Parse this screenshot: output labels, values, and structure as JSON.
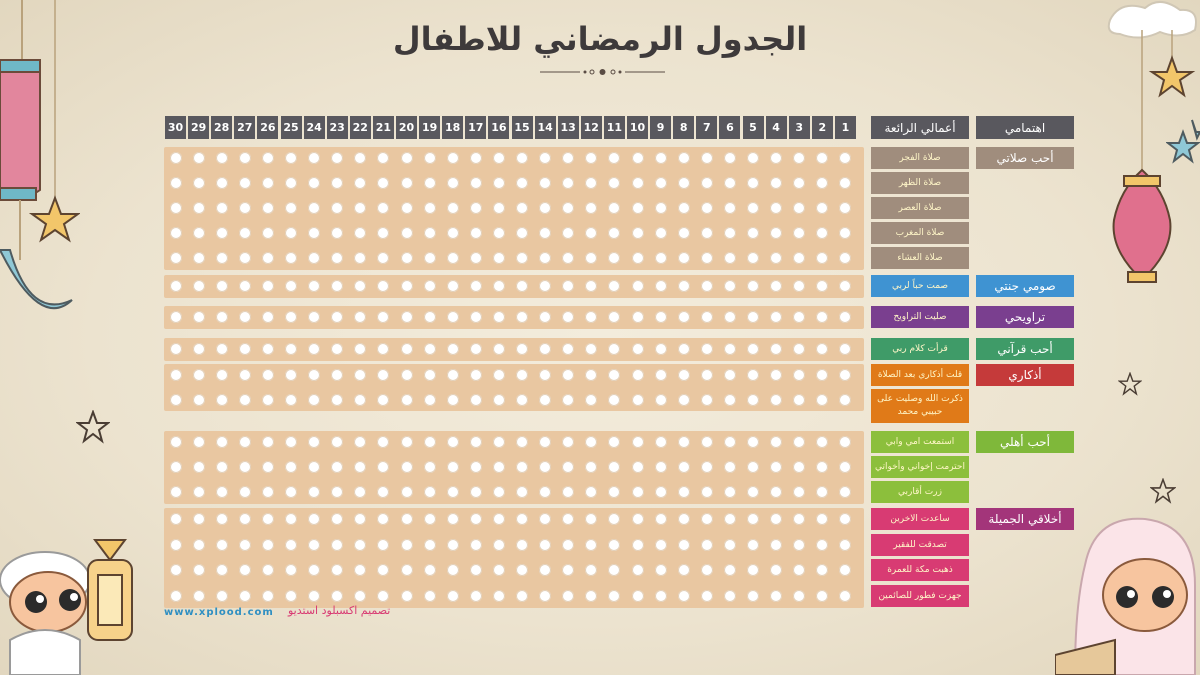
{
  "title": "الجدول الرمضاني للاطفال",
  "header": {
    "interests_label": "اهتمامي",
    "deeds_label": "أعمالي الرائعة",
    "days": [
      "1",
      "2",
      "3",
      "4",
      "5",
      "6",
      "7",
      "8",
      "9",
      "10",
      "11",
      "12",
      "13",
      "14",
      "15",
      "16",
      "17",
      "18",
      "19",
      "20",
      "21",
      "22",
      "23",
      "24",
      "25",
      "26",
      "27",
      "28",
      "29",
      "30"
    ]
  },
  "sections": [
    {
      "category": "أحب صلاتي",
      "color": "#a08d7d",
      "task_color": "#a08d7d",
      "tasks": [
        "صلاة الفجر",
        "صلاة الظهر",
        "صلاة العصر",
        "صلاة المغرب",
        "صلاة العشاء"
      ]
    },
    {
      "category": "صومي جنتي",
      "color": "#3f93d2",
      "task_color": "#3f93d2",
      "tasks": [
        "صمت حباً لربي"
      ]
    },
    {
      "category": "تراويحي",
      "color": "#7a3f8f",
      "task_color": "#7a3f8f",
      "tasks": [
        "صليت التراويح"
      ]
    },
    {
      "category": "أحب قرآني",
      "color": "#3f9b68",
      "task_color": "#3f9b68",
      "tasks": [
        "قرأت كلام ربي"
      ]
    },
    {
      "category": "أذكاري",
      "color": "#c53a3a",
      "task_color": "#e07a18",
      "tasks": [
        "قلت أذكاري بعد الصلاة",
        "ذكرت الله وصليت على حبيبي محمد"
      ]
    },
    {
      "category": "أحب أهلي",
      "color": "#7fb83a",
      "task_color": "#8cbf3c",
      "tasks": [
        "استمعت امي وابي",
        "احترمت إخواني وأخواتي",
        "زرت أقاربي"
      ]
    },
    {
      "category": "أخلاقي الجميلة",
      "color": "#a3357a",
      "task_color": "#d83b73",
      "tasks": [
        "ساعدت الاخرين",
        "تصدقت للفقير",
        "ذهبت مكة للعمرة",
        "جهزت فطور للصائمين"
      ]
    }
  ],
  "footer": {
    "website": "www.xplood.com",
    "credit": "تصميم اكسبلود استديو"
  }
}
